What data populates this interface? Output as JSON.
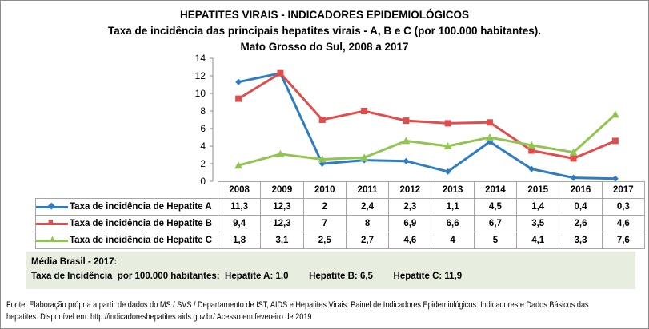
{
  "title": "HEPATITES VIRAIS - INDICADORES EPIDEMIOLÓGICOS",
  "subtitle": "Taxa de incidência das principais hepatites virais - A, B e C (por 100.000 habitantes).",
  "subtitle2": "Mato Grosso do Sul, 2008 a 2017",
  "chart_data": {
    "type": "line",
    "title": "HEPATITES VIRAIS - INDICADORES EPIDEMIOLÓGICOS",
    "categories": [
      "2008",
      "2009",
      "2010",
      "2011",
      "2012",
      "2013",
      "2014",
      "2015",
      "2016",
      "2017"
    ],
    "ylim": [
      0,
      14
    ],
    "yticks": [
      "0",
      "2",
      "4",
      "6",
      "8",
      "10",
      "12",
      "14"
    ],
    "grid": false,
    "legend": "data-table",
    "series": [
      {
        "name": "Taxa de incidência de Hepatite A",
        "color": "#2e7cc4",
        "marker": "diamond",
        "values": [
          11.3,
          12.3,
          2,
          2.4,
          2.3,
          1.1,
          4.5,
          1.4,
          0.4,
          0.3
        ],
        "labels": [
          "11,3",
          "12,3",
          "2",
          "2,4",
          "2,3",
          "1,1",
          "4,5",
          "1,4",
          "0,4",
          "0,3"
        ]
      },
      {
        "name": "Taxa de incidência de Hepatite B",
        "color": "#e04d4d",
        "marker": "square",
        "values": [
          9.4,
          12.3,
          7,
          8,
          6.9,
          6.6,
          6.7,
          3.5,
          2.6,
          4.6
        ],
        "labels": [
          "9,4",
          "12,3",
          "7",
          "8",
          "6,9",
          "6,6",
          "6,7",
          "3,5",
          "2,6",
          "4,6"
        ]
      },
      {
        "name": "Taxa de incidência de Hepatite C",
        "color": "#92c452",
        "marker": "triangle",
        "values": [
          1.8,
          3.1,
          2.5,
          2.7,
          4.6,
          4,
          5,
          4.1,
          3.3,
          7.6
        ],
        "labels": [
          "1,8",
          "3,1",
          "2,5",
          "2,7",
          "4,6",
          "4",
          "5",
          "4,1",
          "3,3",
          "7,6"
        ]
      }
    ]
  },
  "media": {
    "line1": "Média Brasil - 2017:",
    "prefix": "Taxa de Incidência  por 100.000 habitantes:",
    "a": "Hepatite A: 1,0",
    "b": "Hepatite B: 6,5",
    "c": "Hepatite C: 11,9",
    "background": "#e8eedf"
  },
  "fonte": {
    "line1": "Fonte: Elaboração própria a partir de dados do MS / SVS / Departamento de IST, AIDS e Hepatites Virais:  Painel de Indicadores Epidemiológicos: Indicadores e Dados Básicos das",
    "line2": "hepatites.  Disponível em: http://indicadoreshepatites.aids.gov.br/      Acesso em fevereiro de 2019"
  }
}
